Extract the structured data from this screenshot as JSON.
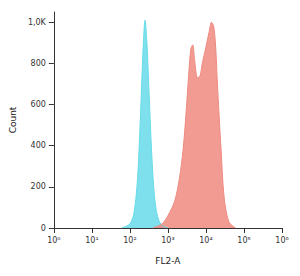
{
  "chart_data": {
    "type": "area",
    "x_label": "FL2-A",
    "y_label": "Count",
    "log": "x",
    "grid": false,
    "xlim": [
      1,
      1000000
    ],
    "xticks": [
      {
        "value": 1,
        "label": "10⁰"
      },
      {
        "value": 10,
        "label": "10¹"
      },
      {
        "value": 100,
        "label": "10²"
      },
      {
        "value": 1000,
        "label": "10³"
      },
      {
        "value": 10000,
        "label": "10⁴"
      },
      {
        "value": 100000,
        "label": "10⁵"
      },
      {
        "value": 1000000,
        "label": "10⁶"
      }
    ],
    "ylim": [
      0,
      1050
    ],
    "yticks": [
      0,
      200,
      400,
      600,
      800,
      {
        "value": 1000,
        "label": "1,0K"
      }
    ],
    "series": [
      {
        "color": "#66dbe9",
        "x": [
          60,
          100,
          130,
          160,
          190,
          220,
          250,
          280,
          320,
          370,
          430,
          500,
          600,
          750,
          1000
        ],
        "values": [
          0,
          20,
          80,
          250,
          550,
          850,
          1010,
          900,
          650,
          380,
          180,
          80,
          30,
          10,
          0
        ]
      },
      {
        "color": "#ef8a80",
        "x": [
          400,
          700,
          1000,
          1500,
          2000,
          2500,
          3000,
          3500,
          4000,
          4500,
          5000,
          6000,
          7000,
          8000,
          10000,
          12000,
          14000,
          16000,
          18000,
          20000,
          25000,
          30000,
          40000,
          60000
        ],
        "values": [
          0,
          20,
          60,
          130,
          240,
          380,
          560,
          740,
          870,
          890,
          820,
          730,
          740,
          800,
          880,
          950,
          1000,
          980,
          880,
          700,
          380,
          150,
          30,
          0
        ]
      }
    ]
  }
}
